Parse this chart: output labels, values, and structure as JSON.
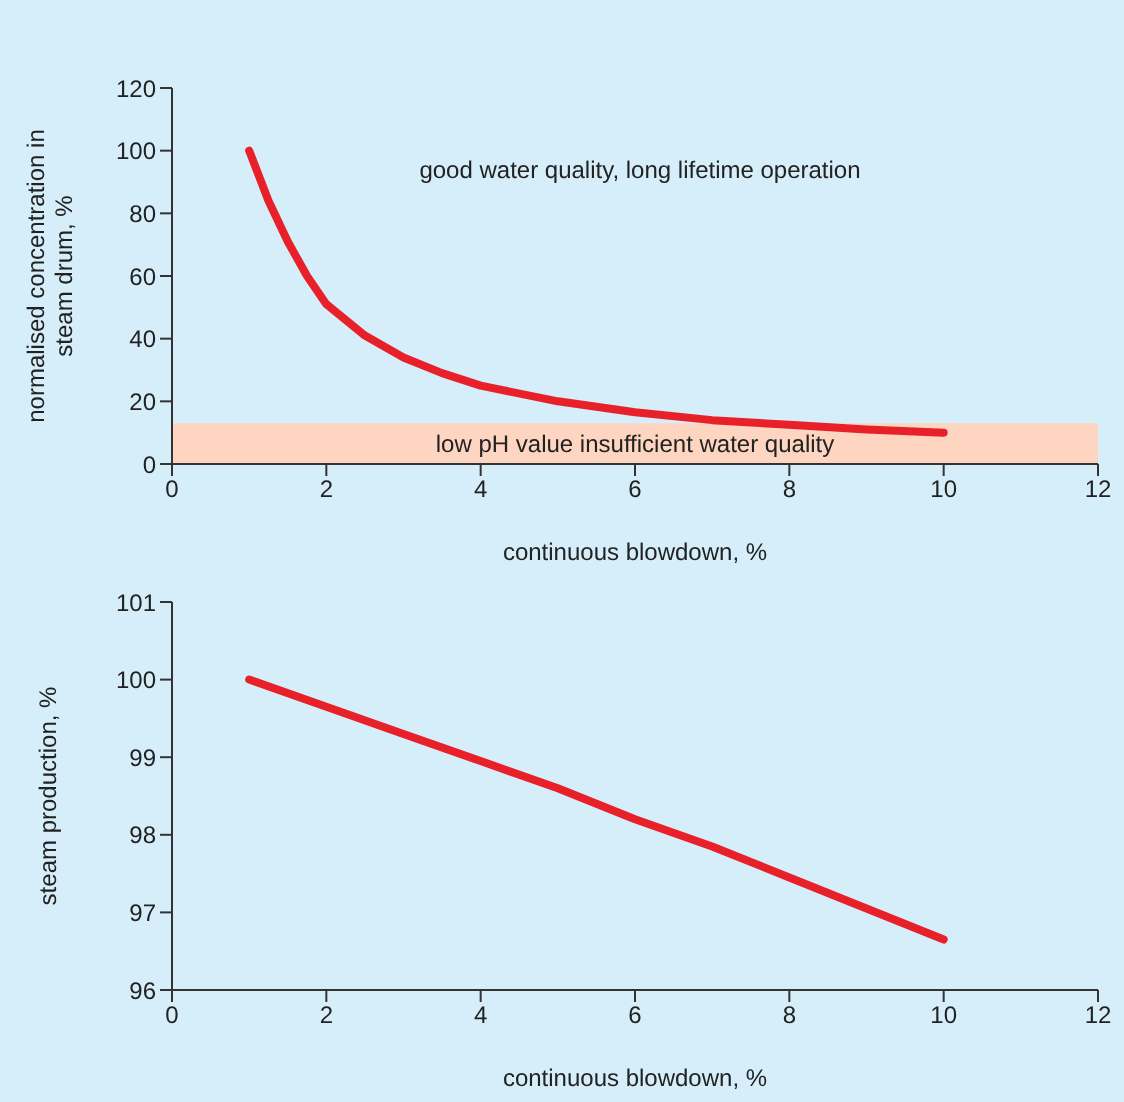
{
  "chart_data": [
    {
      "type": "line",
      "xlabel": "continuous blowdown, %",
      "ylabel": "normalised concentration in steam drum, %",
      "annotations": [
        "good water quality, long lifetime operation"
      ],
      "x": [
        1,
        1.25,
        1.5,
        1.75,
        2,
        2.5,
        3,
        3.5,
        4,
        5,
        6,
        7,
        8,
        9,
        10
      ],
      "series": [
        {
          "color": "#e8202a",
          "values": [
            100,
            84,
            71,
            60,
            51,
            41,
            34,
            29,
            25,
            20,
            16.5,
            14,
            12.5,
            11,
            10
          ]
        }
      ],
      "xlim": [
        0,
        12
      ],
      "xticks": [
        0,
        2,
        4,
        6,
        8,
        10,
        12
      ],
      "ylim": [
        0,
        120
      ],
      "yticks": [
        0,
        20,
        40,
        60,
        80,
        100,
        120
      ],
      "bands": [
        {
          "axis": "y",
          "from": 0,
          "to": 13,
          "label": "low pH value insufficient water quality",
          "color": "#fdd5c0"
        }
      ],
      "line_style": "solid"
    },
    {
      "type": "line",
      "xlabel": "continuous blowdown, %",
      "ylabel": "steam production, %",
      "x": [
        1,
        2,
        3,
        4,
        5,
        6,
        7,
        8,
        9,
        10
      ],
      "series": [
        {
          "color": "#e8202a",
          "values": [
            100,
            99.65,
            99.3,
            98.95,
            98.6,
            98.2,
            97.85,
            97.45,
            97.05,
            96.65
          ]
        }
      ],
      "xlim": [
        0,
        12
      ],
      "xticks": [
        0,
        2,
        4,
        6,
        8,
        10,
        12
      ],
      "ylim": [
        96,
        101
      ],
      "yticks": [
        96,
        97,
        98,
        99,
        100,
        101
      ],
      "line_style": "solid"
    }
  ]
}
